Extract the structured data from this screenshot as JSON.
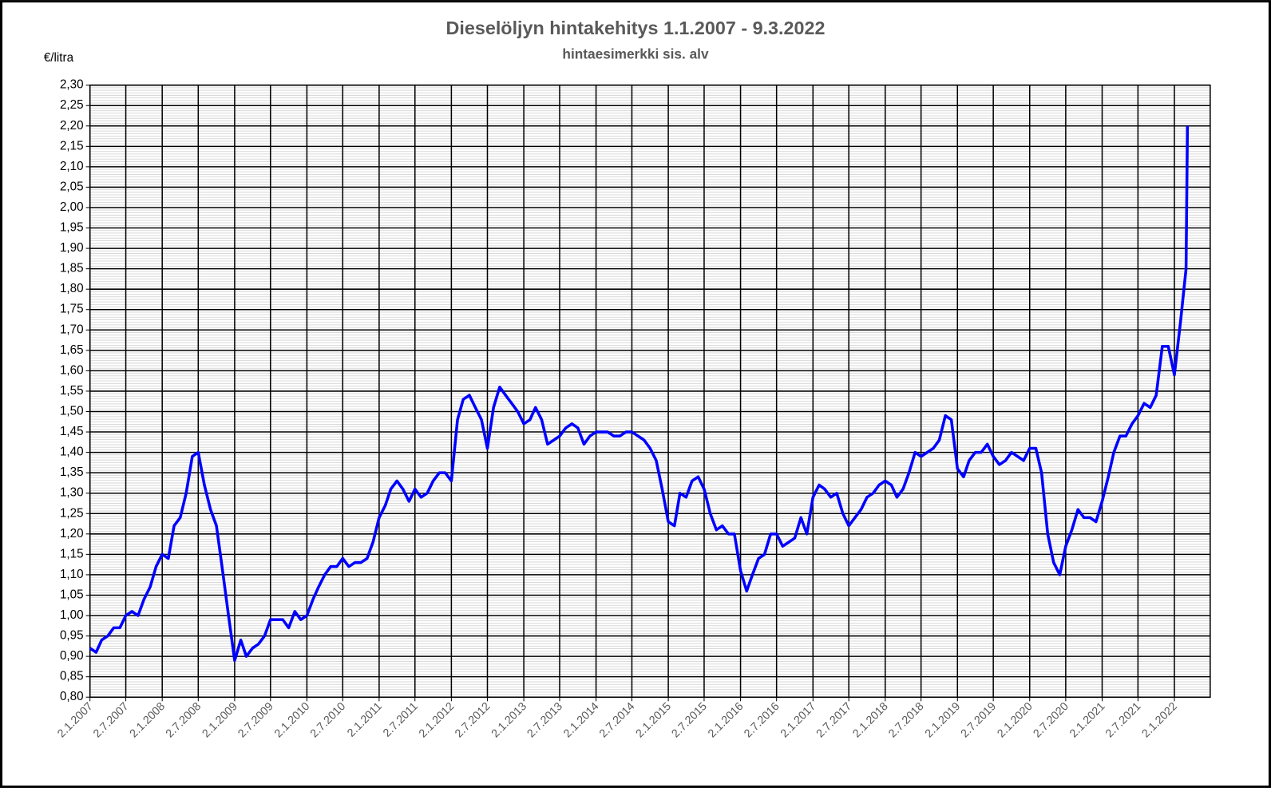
{
  "chart_data": {
    "type": "line",
    "title": "Dieselöljyn hintakehitys 1.1.2007 - 9.3.2022",
    "subtitle": "hintaesimerkki sis. alv",
    "y_label": "€/litra",
    "color": "#0000ff",
    "grid": true,
    "x": [
      "2.1.2007",
      "2.2.2007",
      "2.3.2007",
      "2.4.2007",
      "2.5.2007",
      "2.6.2007",
      "2.7.2007",
      "2.8.2007",
      "2.9.2007",
      "2.10.2007",
      "2.11.2007",
      "2.12.2007",
      "2.1.2008",
      "2.2.2008",
      "2.3.2008",
      "2.4.2008",
      "2.5.2008",
      "2.6.2008",
      "2.7.2008",
      "2.8.2008",
      "2.9.2008",
      "2.10.2008",
      "2.11.2008",
      "2.12.2008",
      "2.1.2009",
      "2.2.2009",
      "2.3.2009",
      "2.4.2009",
      "2.5.2009",
      "2.6.2009",
      "2.7.2009",
      "2.8.2009",
      "2.9.2009",
      "2.10.2009",
      "2.11.2009",
      "2.12.2009",
      "2.1.2010",
      "2.2.2010",
      "2.3.2010",
      "2.4.2010",
      "2.5.2010",
      "2.6.2010",
      "2.7.2010",
      "2.8.2010",
      "2.9.2010",
      "2.10.2010",
      "2.11.2010",
      "2.12.2010",
      "2.1.2011",
      "2.2.2011",
      "2.3.2011",
      "2.4.2011",
      "2.5.2011",
      "2.6.2011",
      "2.7.2011",
      "2.8.2011",
      "2.9.2011",
      "2.10.2011",
      "2.11.2011",
      "2.12.2011",
      "2.1.2012",
      "2.2.2012",
      "2.3.2012",
      "2.4.2012",
      "2.5.2012",
      "2.6.2012",
      "2.7.2012",
      "2.8.2012",
      "2.9.2012",
      "2.10.2012",
      "2.11.2012",
      "2.12.2012",
      "2.1.2013",
      "2.2.2013",
      "2.3.2013",
      "2.4.2013",
      "2.5.2013",
      "2.6.2013",
      "2.7.2013",
      "2.8.2013",
      "2.9.2013",
      "2.10.2013",
      "2.11.2013",
      "2.12.2013",
      "2.1.2014",
      "2.2.2014",
      "2.3.2014",
      "2.4.2014",
      "2.5.2014",
      "2.6.2014",
      "2.7.2014",
      "2.8.2014",
      "2.9.2014",
      "2.10.2014",
      "2.11.2014",
      "2.12.2014",
      "2.1.2015",
      "2.2.2015",
      "2.3.2015",
      "2.4.2015",
      "2.5.2015",
      "2.6.2015",
      "2.7.2015",
      "2.8.2015",
      "2.9.2015",
      "2.10.2015",
      "2.11.2015",
      "2.12.2015",
      "2.1.2016",
      "2.2.2016",
      "2.3.2016",
      "2.4.2016",
      "2.5.2016",
      "2.6.2016",
      "2.7.2016",
      "2.8.2016",
      "2.9.2016",
      "2.10.2016",
      "2.11.2016",
      "2.12.2016",
      "2.1.2017",
      "2.2.2017",
      "2.3.2017",
      "2.4.2017",
      "2.5.2017",
      "2.6.2017",
      "2.7.2017",
      "2.8.2017",
      "2.9.2017",
      "2.10.2017",
      "2.11.2017",
      "2.12.2017",
      "2.1.2018",
      "2.2.2018",
      "2.3.2018",
      "2.4.2018",
      "2.5.2018",
      "2.6.2018",
      "2.7.2018",
      "2.8.2018",
      "2.9.2018",
      "2.10.2018",
      "2.11.2018",
      "2.12.2018",
      "2.1.2019",
      "2.2.2019",
      "2.3.2019",
      "2.4.2019",
      "2.5.2019",
      "2.6.2019",
      "2.7.2019",
      "2.8.2019",
      "2.9.2019",
      "2.10.2019",
      "2.11.2019",
      "2.12.2019",
      "2.1.2020",
      "2.2.2020",
      "2.3.2020",
      "2.4.2020",
      "2.5.2020",
      "2.6.2020",
      "2.7.2020",
      "2.8.2020",
      "2.9.2020",
      "2.10.2020",
      "2.11.2020",
      "2.12.2020",
      "2.1.2021",
      "2.2.2021",
      "2.3.2021",
      "2.4.2021",
      "2.5.2021",
      "2.6.2021",
      "2.7.2021",
      "2.8.2021",
      "2.9.2021",
      "2.10.2021",
      "2.11.2021",
      "2.12.2021",
      "2.1.2022",
      "2.2.2022",
      "2.3.2022",
      "9.3.2022"
    ],
    "values": [
      0.92,
      0.91,
      0.94,
      0.95,
      0.97,
      0.97,
      1.0,
      1.01,
      1.0,
      1.04,
      1.07,
      1.12,
      1.15,
      1.14,
      1.22,
      1.24,
      1.3,
      1.39,
      1.4,
      1.32,
      1.26,
      1.22,
      1.11,
      1.0,
      0.89,
      0.94,
      0.9,
      0.92,
      0.93,
      0.95,
      0.99,
      0.99,
      0.99,
      0.97,
      1.01,
      0.99,
      1.0,
      1.04,
      1.07,
      1.1,
      1.12,
      1.12,
      1.14,
      1.12,
      1.13,
      1.13,
      1.14,
      1.18,
      1.24,
      1.27,
      1.31,
      1.33,
      1.31,
      1.28,
      1.31,
      1.29,
      1.3,
      1.33,
      1.35,
      1.35,
      1.33,
      1.48,
      1.53,
      1.54,
      1.51,
      1.48,
      1.41,
      1.51,
      1.56,
      1.54,
      1.52,
      1.5,
      1.47,
      1.48,
      1.51,
      1.48,
      1.42,
      1.43,
      1.44,
      1.46,
      1.47,
      1.46,
      1.42,
      1.44,
      1.45,
      1.45,
      1.45,
      1.44,
      1.44,
      1.45,
      1.45,
      1.44,
      1.43,
      1.41,
      1.38,
      1.31,
      1.23,
      1.22,
      1.3,
      1.29,
      1.33,
      1.34,
      1.31,
      1.25,
      1.21,
      1.22,
      1.2,
      1.2,
      1.11,
      1.06,
      1.1,
      1.14,
      1.15,
      1.2,
      1.2,
      1.17,
      1.18,
      1.19,
      1.24,
      1.2,
      1.29,
      1.32,
      1.31,
      1.29,
      1.3,
      1.25,
      1.22,
      1.24,
      1.26,
      1.29,
      1.3,
      1.32,
      1.33,
      1.32,
      1.29,
      1.31,
      1.35,
      1.4,
      1.39,
      1.4,
      1.41,
      1.43,
      1.49,
      1.48,
      1.36,
      1.34,
      1.38,
      1.4,
      1.4,
      1.42,
      1.39,
      1.37,
      1.38,
      1.4,
      1.39,
      1.38,
      1.41,
      1.41,
      1.35,
      1.2,
      1.13,
      1.1,
      1.17,
      1.21,
      1.26,
      1.24,
      1.24,
      1.23,
      1.28,
      1.34,
      1.4,
      1.44,
      1.44,
      1.47,
      1.49,
      1.52,
      1.51,
      1.54,
      1.66,
      1.66,
      1.59,
      1.72,
      1.85,
      2.2
    ],
    "xlim": [
      "2.1.2007",
      "2.7.2022"
    ],
    "xticks": [
      "2.1.2007",
      "2.7.2007",
      "2.1.2008",
      "2.7.2008",
      "2.1.2009",
      "2.7.2009",
      "2.1.2010",
      "2.7.2010",
      "2.1.2011",
      "2.7.2011",
      "2.1.2012",
      "2.7.2012",
      "2.1.2013",
      "2.7.2013",
      "2.1.2014",
      "2.7.2014",
      "2.1.2015",
      "2.7.2015",
      "2.1.2016",
      "2.7.2016",
      "2.1.2017",
      "2.7.2017",
      "2.1.2018",
      "2.7.2018",
      "2.1.2019",
      "2.7.2019",
      "2.1.2020",
      "2.7.2020",
      "2.1.2021",
      "2.7.2021",
      "2.1.2022"
    ],
    "ylim": [
      0.8,
      2.3
    ],
    "yticks": [
      {
        "value": 0.8,
        "label": "0,80"
      },
      {
        "value": 0.85,
        "label": "0,85"
      },
      {
        "value": 0.9,
        "label": "0,90"
      },
      {
        "value": 0.95,
        "label": "0,95"
      },
      {
        "value": 1.0,
        "label": "1,00"
      },
      {
        "value": 1.05,
        "label": "1,05"
      },
      {
        "value": 1.1,
        "label": "1,10"
      },
      {
        "value": 1.15,
        "label": "1,15"
      },
      {
        "value": 1.2,
        "label": "1,20"
      },
      {
        "value": 1.25,
        "label": "1,25"
      },
      {
        "value": 1.3,
        "label": "1,30"
      },
      {
        "value": 1.35,
        "label": "1,35"
      },
      {
        "value": 1.4,
        "label": "1,40"
      },
      {
        "value": 1.45,
        "label": "1,45"
      },
      {
        "value": 1.5,
        "label": "1,50"
      },
      {
        "value": 1.55,
        "label": "1,55"
      },
      {
        "value": 1.6,
        "label": "1,60"
      },
      {
        "value": 1.65,
        "label": "1,65"
      },
      {
        "value": 1.7,
        "label": "1,70"
      },
      {
        "value": 1.75,
        "label": "1,75"
      },
      {
        "value": 1.8,
        "label": "1,80"
      },
      {
        "value": 1.85,
        "label": "1,85"
      },
      {
        "value": 1.9,
        "label": "1,90"
      },
      {
        "value": 1.95,
        "label": "1,95"
      },
      {
        "value": 2.0,
        "label": "2,00"
      },
      {
        "value": 2.05,
        "label": "2,05"
      },
      {
        "value": 2.1,
        "label": "2,10"
      },
      {
        "value": 2.15,
        "label": "2,15"
      },
      {
        "value": 2.2,
        "label": "2,20"
      },
      {
        "value": 2.25,
        "label": "2,25"
      },
      {
        "value": 2.3,
        "label": "2,30"
      }
    ]
  }
}
